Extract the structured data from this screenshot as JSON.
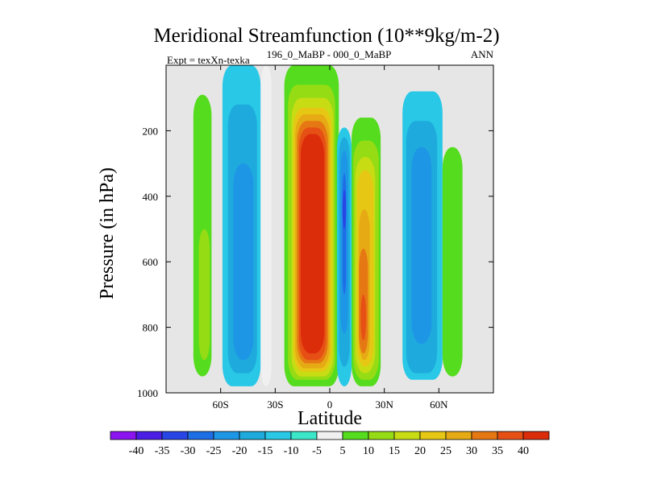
{
  "chart_data": {
    "type": "heatmap",
    "title": "Meridional Streamfunction (10**9kg/m-2)",
    "subtitle_left": "Expt = texXn-texka",
    "subtitle_center": "196_0_MaBP - 000_0_MaBP",
    "subtitle_right": "ANN",
    "xlabel": "Latitude",
    "ylabel": "Pressure (in hPa)",
    "xlim": [
      -90,
      90
    ],
    "ylim": [
      1000,
      0
    ],
    "x_ticks": [
      {
        "value": -60,
        "label": "60S"
      },
      {
        "value": -30,
        "label": "30S"
      },
      {
        "value": 0,
        "label": "0"
      },
      {
        "value": 30,
        "label": "30N"
      },
      {
        "value": 60,
        "label": "60N"
      }
    ],
    "y_ticks": [
      {
        "value": 200,
        "label": "200"
      },
      {
        "value": 400,
        "label": "400"
      },
      {
        "value": 600,
        "label": "600"
      },
      {
        "value": 800,
        "label": "800"
      },
      {
        "value": 1000,
        "label": "1000"
      }
    ],
    "missing_color": "#e6e6e6",
    "colorbar": {
      "levels": [
        "-40",
        "-35",
        "-30",
        "-25",
        "-20",
        "-15",
        "-10",
        "-5",
        "5",
        "10",
        "15",
        "20",
        "25",
        "30",
        "35",
        "40"
      ],
      "colors": [
        "#8c14f0",
        "#4b1ee6",
        "#2846e6",
        "#1e6ee6",
        "#1e96e6",
        "#1eaadc",
        "#28c8e6",
        "#3ce6c8",
        "#f0f0f0",
        "#55dc1e",
        "#96dc14",
        "#c8dc14",
        "#e6c814",
        "#e6aa14",
        "#e67814",
        "#e65014",
        "#dc2d0a"
      ]
    },
    "cells": [
      {
        "lat": [
          -75,
          -65
        ],
        "p": [
          90,
          950
        ],
        "value": 10,
        "bin": 9
      },
      {
        "lat": [
          -72,
          -66
        ],
        "p": [
          500,
          900
        ],
        "value": 15,
        "bin": 10
      },
      {
        "lat": [
          -59,
          -38
        ],
        "p": [
          0,
          980
        ],
        "value": -10,
        "bin": 6
      },
      {
        "lat": [
          -56,
          -40
        ],
        "p": [
          120,
          940
        ],
        "value": -15,
        "bin": 5
      },
      {
        "lat": [
          -53,
          -42
        ],
        "p": [
          300,
          900
        ],
        "value": -20,
        "bin": 4
      },
      {
        "lat": [
          -38,
          -32
        ],
        "p": [
          0,
          980
        ],
        "value": 5,
        "bin": 8
      },
      {
        "lat": [
          -25,
          5
        ],
        "p": [
          0,
          980
        ],
        "value": 10,
        "bin": 9
      },
      {
        "lat": [
          -23,
          3
        ],
        "p": [
          60,
          960
        ],
        "value": 15,
        "bin": 10
      },
      {
        "lat": [
          -21,
          2
        ],
        "p": [
          100,
          950
        ],
        "value": 20,
        "bin": 11
      },
      {
        "lat": [
          -20,
          1
        ],
        "p": [
          130,
          935
        ],
        "value": 25,
        "bin": 12
      },
      {
        "lat": [
          -19,
          0
        ],
        "p": [
          150,
          925
        ],
        "value": 30,
        "bin": 13
      },
      {
        "lat": [
          -18,
          -1
        ],
        "p": [
          170,
          910
        ],
        "value": 35,
        "bin": 14
      },
      {
        "lat": [
          -17,
          -2
        ],
        "p": [
          190,
          900
        ],
        "value": 40,
        "bin": 15
      },
      {
        "lat": [
          -16,
          -3
        ],
        "p": [
          210,
          880
        ],
        "value": 45,
        "bin": 16
      },
      {
        "lat": [
          4,
          12
        ],
        "p": [
          190,
          980
        ],
        "value": -10,
        "bin": 6
      },
      {
        "lat": [
          5,
          11
        ],
        "p": [
          220,
          920
        ],
        "value": -15,
        "bin": 5
      },
      {
        "lat": [
          6,
          10
        ],
        "p": [
          260,
          820
        ],
        "value": -20,
        "bin": 4
      },
      {
        "lat": [
          7,
          9
        ],
        "p": [
          330,
          700
        ],
        "value": -25,
        "bin": 3
      },
      {
        "lat": [
          7,
          9
        ],
        "p": [
          380,
          500
        ],
        "value": -30,
        "bin": 2
      },
      {
        "lat": [
          12,
          28
        ],
        "p": [
          160,
          980
        ],
        "value": 10,
        "bin": 9
      },
      {
        "lat": [
          13,
          27
        ],
        "p": [
          230,
          960
        ],
        "value": 15,
        "bin": 10
      },
      {
        "lat": [
          14,
          25
        ],
        "p": [
          280,
          940
        ],
        "value": 20,
        "bin": 11
      },
      {
        "lat": [
          15,
          24
        ],
        "p": [
          320,
          920
        ],
        "value": 25,
        "bin": 12
      },
      {
        "lat": [
          16,
          22
        ],
        "p": [
          440,
          900
        ],
        "value": 30,
        "bin": 13
      },
      {
        "lat": [
          16,
          21
        ],
        "p": [
          560,
          880
        ],
        "value": 35,
        "bin": 14
      },
      {
        "lat": [
          17,
          20
        ],
        "p": [
          700,
          840
        ],
        "value": 40,
        "bin": 15
      },
      {
        "lat": [
          40,
          62
        ],
        "p": [
          80,
          960
        ],
        "value": -10,
        "bin": 6
      },
      {
        "lat": [
          42,
          59
        ],
        "p": [
          170,
          940
        ],
        "value": -15,
        "bin": 5
      },
      {
        "lat": [
          45,
          56
        ],
        "p": [
          250,
          850
        ],
        "value": -20,
        "bin": 4
      },
      {
        "lat": [
          62,
          73
        ],
        "p": [
          250,
          950
        ],
        "value": 10,
        "bin": 9
      }
    ]
  }
}
